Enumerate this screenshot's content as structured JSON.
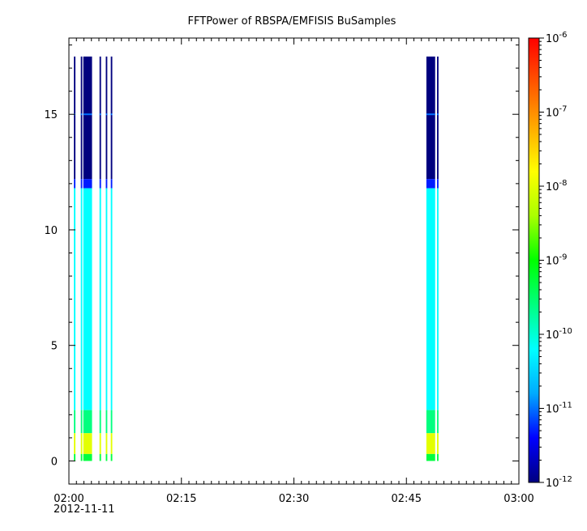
{
  "chart_data": {
    "type": "heatmap",
    "title": "FFTPower of RBSPA/EMFISIS  BuSamples",
    "xlabel": "",
    "ylabel": "",
    "date_label": "2012-11-11",
    "x_range": [
      "02:00",
      "03:00"
    ],
    "x_ticks": [
      {
        "value": "02:00",
        "label": "02:00"
      },
      {
        "value": "02:15",
        "label": "02:15"
      },
      {
        "value": "02:30",
        "label": "02:30"
      },
      {
        "value": "02:45",
        "label": "02:45"
      },
      {
        "value": "03:00",
        "label": "03:00"
      }
    ],
    "ylim": [
      -1,
      18.3
    ],
    "y_ticks": [
      0,
      5,
      10,
      15
    ],
    "colorbar": {
      "scale": "log",
      "range": [
        1e-12,
        1e-06
      ],
      "tick_labels": [
        {
          "mantissa": "10",
          "exp": "-12",
          "value": 1e-12
        },
        {
          "mantissa": "10",
          "exp": "-11",
          "value": 1e-11
        },
        {
          "mantissa": "10",
          "exp": "-10",
          "value": 1e-10
        },
        {
          "mantissa": "10",
          "exp": "-9",
          "value": 1e-09
        },
        {
          "mantissa": "10",
          "exp": "-8",
          "value": 1e-08
        },
        {
          "mantissa": "10",
          "exp": "-7",
          "value": 1e-07
        },
        {
          "mantissa": "10",
          "exp": "-6",
          "value": 1e-06
        }
      ],
      "colormap": [
        "#00007f",
        "#0000ff",
        "#00aaff",
        "#00ffff",
        "#00ff7f",
        "#00ff00",
        "#aaff00",
        "#ffff00",
        "#ffaa00",
        "#ff5500",
        "#ff0000"
      ]
    },
    "data_segments": [
      {
        "start": "02:00:40",
        "end": "02:00:52"
      },
      {
        "start": "02:01:35",
        "end": "02:01:47"
      },
      {
        "start": "02:01:55",
        "end": "02:03:05"
      },
      {
        "start": "02:04:05",
        "end": "02:04:17"
      },
      {
        "start": "02:04:55",
        "end": "02:05:07"
      },
      {
        "start": "02:05:35",
        "end": "02:05:47"
      },
      {
        "start": "02:47:40",
        "end": "02:48:50"
      },
      {
        "start": "02:49:05",
        "end": "02:49:17"
      }
    ],
    "spectral_profile": [
      {
        "y0": 12.2,
        "y1": 17.5,
        "log_power": -12
      },
      {
        "y0": 11.8,
        "y1": 12.2,
        "log_power": -11.3
      },
      {
        "y0": 2.2,
        "y1": 11.8,
        "log_power": -10.2
      },
      {
        "y0": 1.2,
        "y1": 2.2,
        "log_power": -9.6
      },
      {
        "y0": 0.3,
        "y1": 1.2,
        "log_power": -8.0
      },
      {
        "y0": 0.0,
        "y1": 0.3,
        "log_power": -9.3
      }
    ],
    "line_features": [
      {
        "y": 15.0,
        "log_power": -11.0
      }
    ]
  }
}
